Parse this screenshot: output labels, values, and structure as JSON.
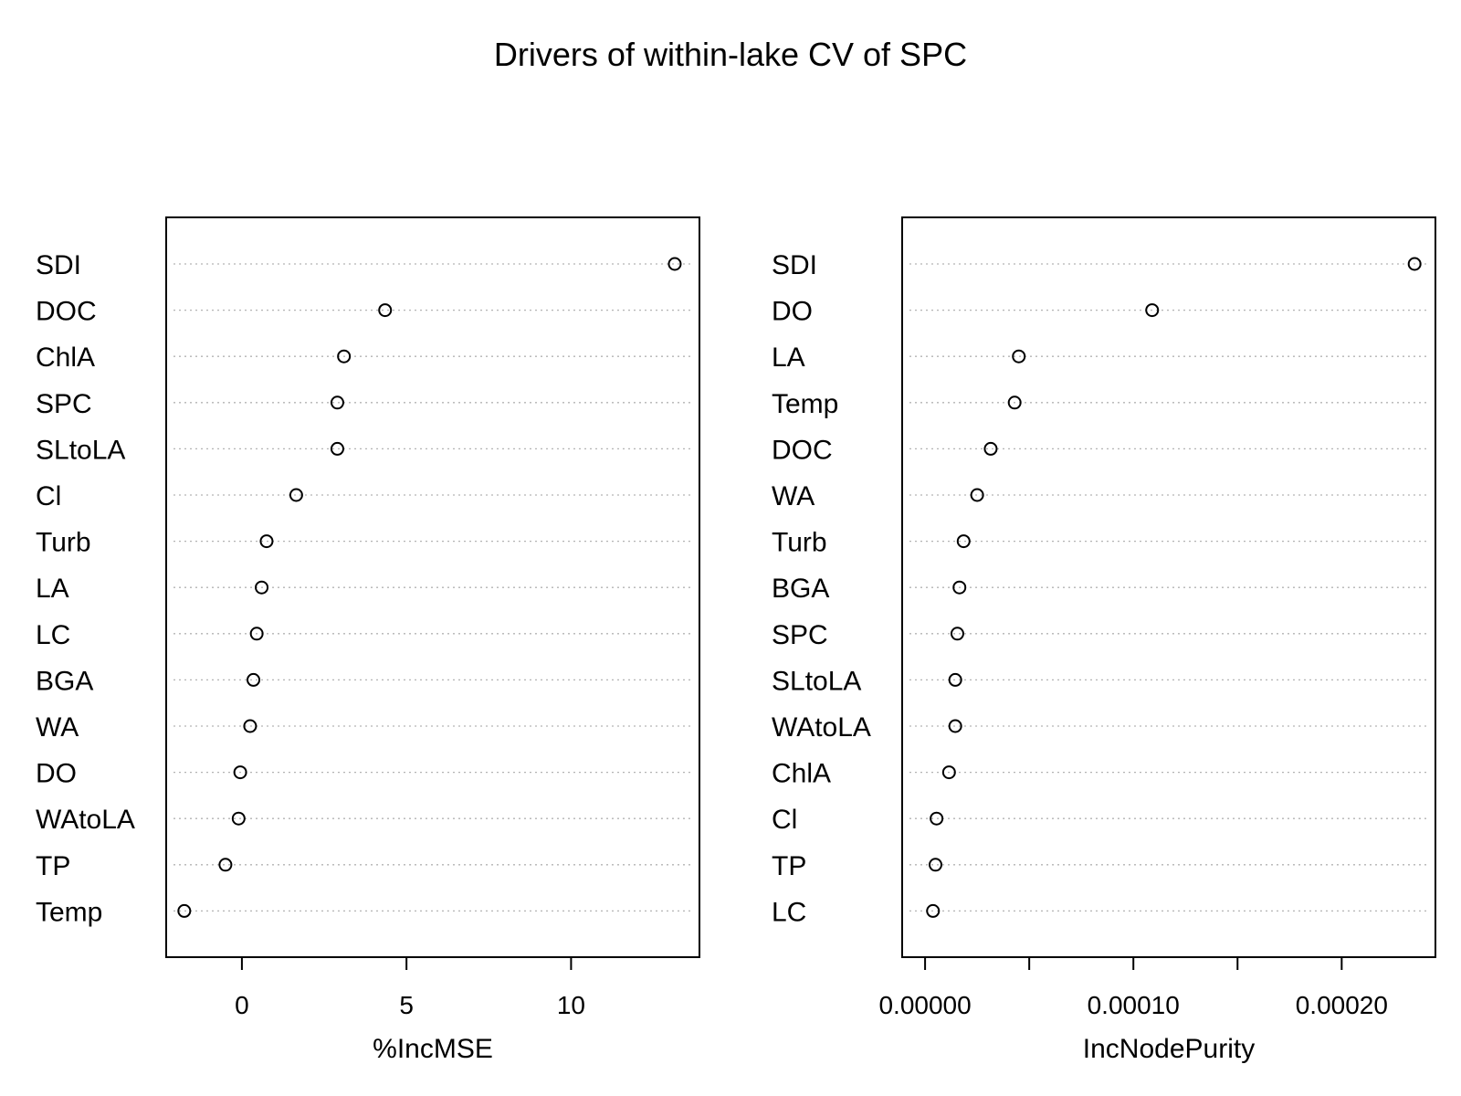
{
  "chart_data": {
    "type": "scatter",
    "title": "Drivers of within-lake CV of SPC",
    "panels": [
      {
        "xlabel": "%IncMSE",
        "xlim": [
          -2.3,
          13.9
        ],
        "ticks": [
          0,
          5,
          10
        ],
        "tick_labels": [
          "0",
          "5",
          "10"
        ],
        "grid": "dotted-horizontal",
        "categories": [
          "SDI",
          "DOC",
          "ChlA",
          "SPC",
          "SLtoLA",
          "Cl",
          "Turb",
          "LA",
          "LC",
          "BGA",
          "WA",
          "DO",
          "WAtoLA",
          "TP",
          "Temp"
        ],
        "values": [
          13.15,
          4.35,
          3.1,
          2.9,
          2.9,
          1.65,
          0.75,
          0.6,
          0.45,
          0.35,
          0.25,
          -0.05,
          -0.1,
          -0.5,
          -1.75
        ]
      },
      {
        "xlabel": "IncNodePurity",
        "xlim": [
          -1.1e-05,
          0.000245
        ],
        "ticks": [
          0.0,
          5e-05,
          0.0001,
          0.00015,
          0.0002
        ],
        "tick_labels": [
          "0.00000",
          "",
          "0.00010",
          "",
          "0.00020"
        ],
        "grid": "dotted-horizontal",
        "categories": [
          "SDI",
          "DO",
          "LA",
          "Temp",
          "DOC",
          "WA",
          "Turb",
          "BGA",
          "SPC",
          "SLtoLA",
          "WAtoLA",
          "ChlA",
          "Cl",
          "TP",
          "LC"
        ],
        "values": [
          0.000235,
          0.000109,
          4.5e-05,
          4.3e-05,
          3.15e-05,
          2.5e-05,
          1.85e-05,
          1.65e-05,
          1.55e-05,
          1.45e-05,
          1.45e-05,
          1.15e-05,
          5.5e-06,
          5e-06,
          3.8e-06
        ]
      }
    ]
  }
}
